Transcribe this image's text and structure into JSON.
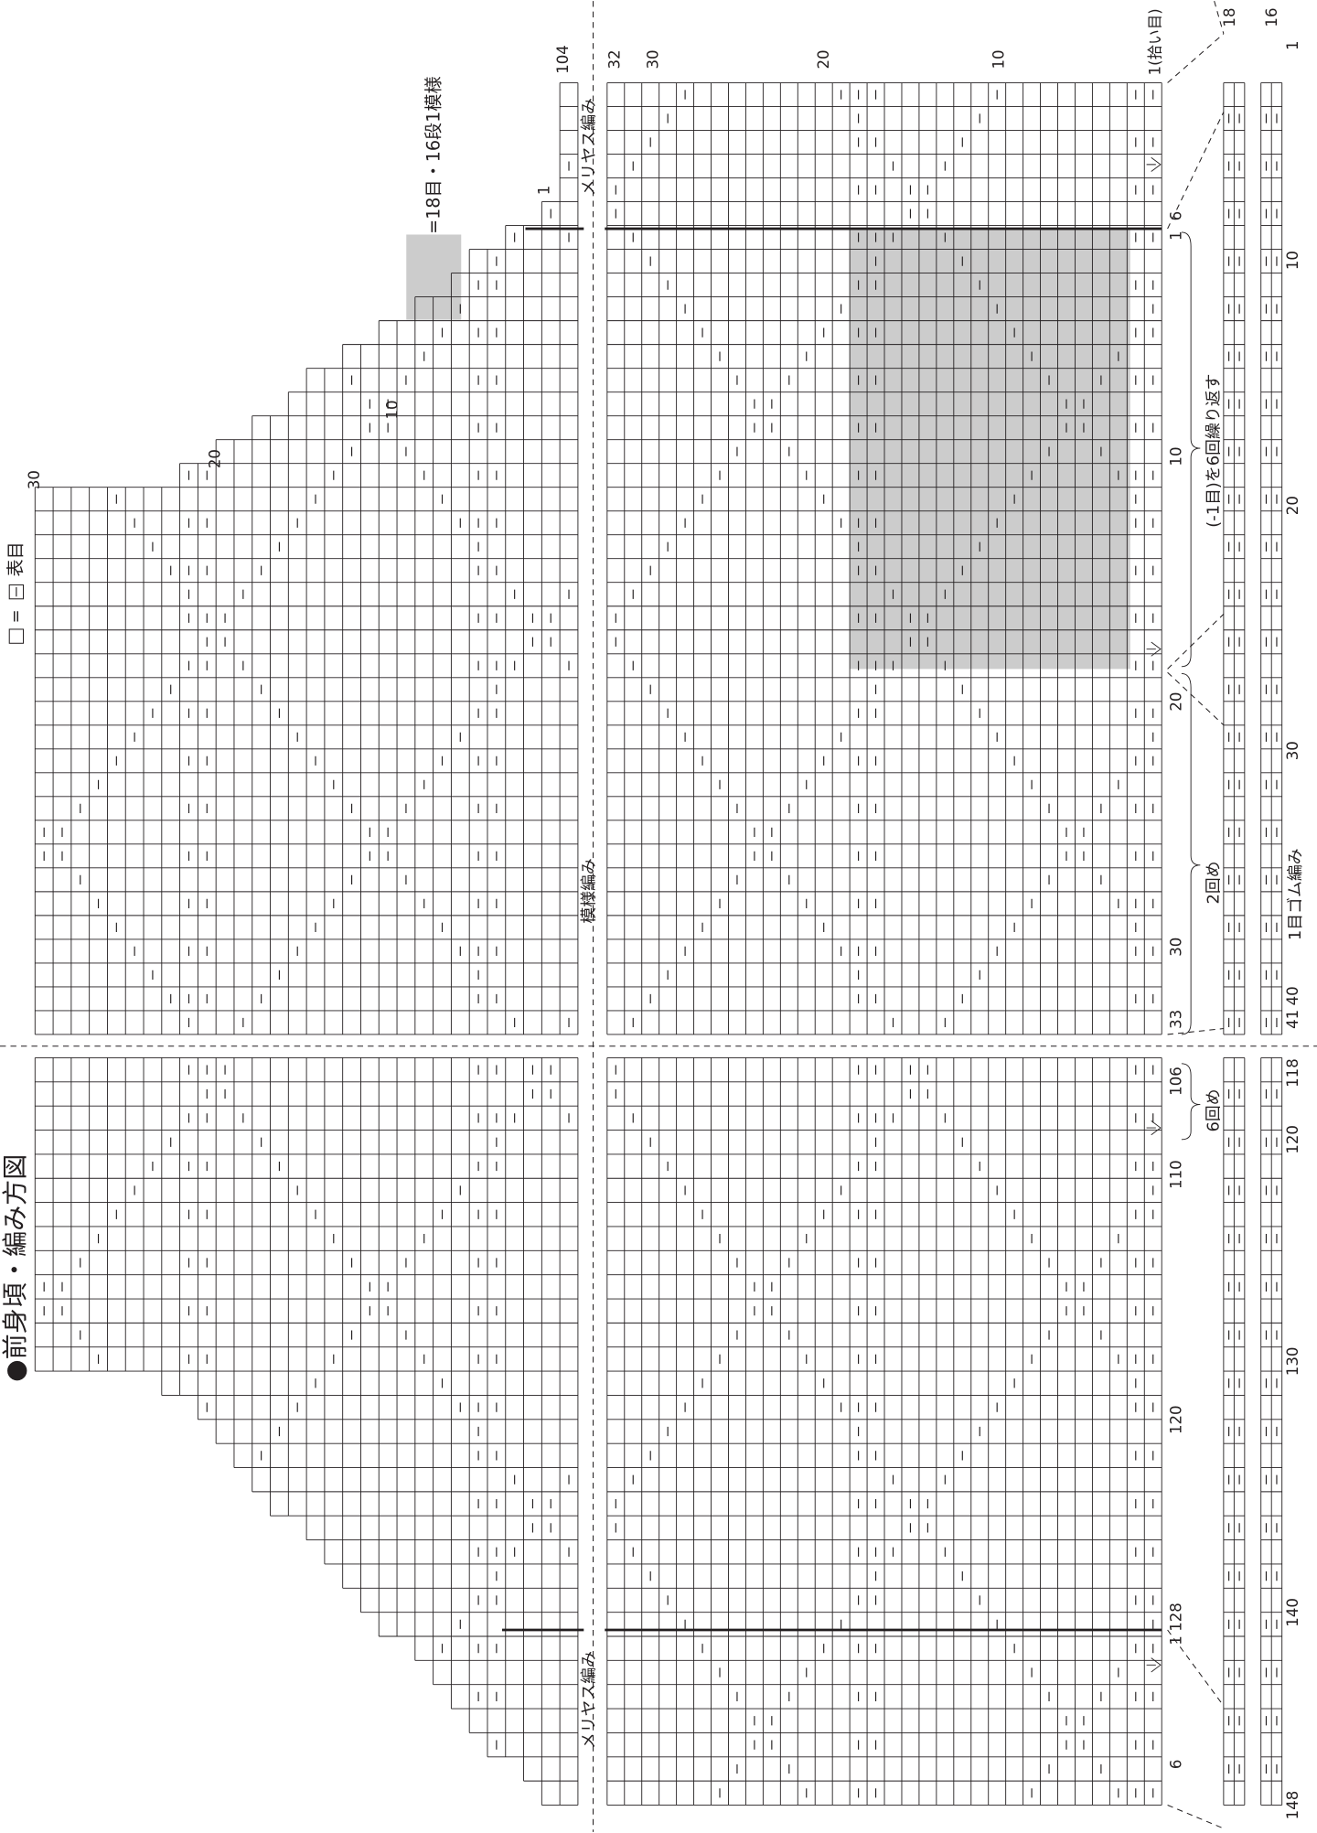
{
  "title": "●前身頃・編み方図",
  "legend": {
    "knit_equals": "=",
    "knit_label": "表目",
    "repeat_label": "=18目・16段1模様"
  },
  "section_labels": {
    "stockinette_top": "メリヤス編み",
    "pattern": "模様編み",
    "stockinette_bottom": "メリヤス編み",
    "rib": "1目ゴム編み"
  },
  "repeat_notes": {
    "repeat": "(-1目)を6回繰り返す",
    "second": "2回め",
    "sixth": "6回め"
  },
  "row_numbers": [
    "104",
    "32",
    "30",
    "20",
    "10"
  ],
  "pickup_label": "1(拾い目)",
  "shoulder_row_numbers": [
    "30",
    "20",
    "10",
    "1"
  ],
  "stitch_numbers": [
    "1",
    "6",
    "10",
    "20",
    "30",
    "33",
    "106",
    "110",
    "120",
    "1",
    "128",
    "6"
  ],
  "rib_row_numbers": [
    "18",
    "16"
  ],
  "rib_stitch_numbers": [
    "1",
    "10",
    "20",
    "30",
    "40",
    "41",
    "118",
    "120",
    "130",
    "140",
    "148"
  ]
}
